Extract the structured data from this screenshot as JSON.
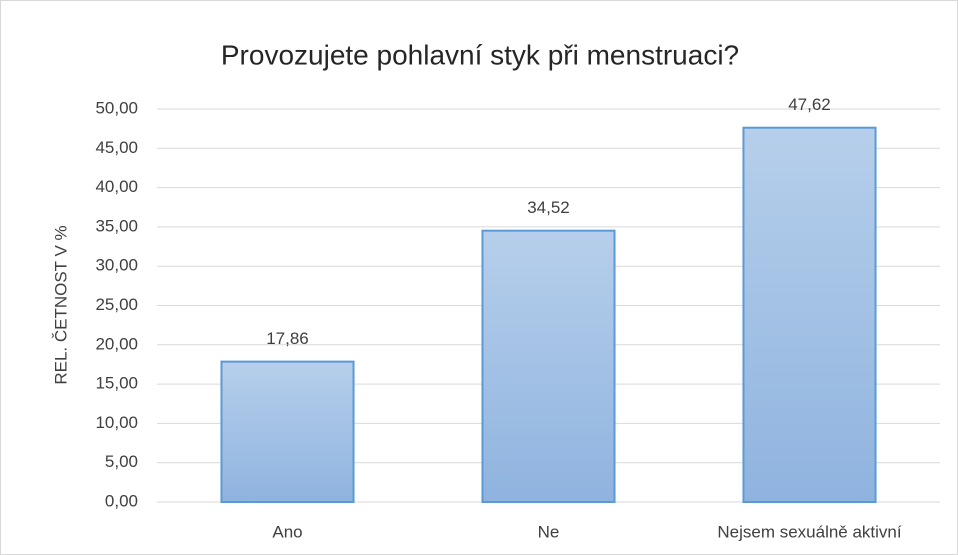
{
  "chart_data": {
    "type": "bar",
    "title": "Provozujete pohlavní styk při menstruaci?",
    "ylabel": "REL. ČETNOST V %",
    "categories": [
      "Ano",
      "Ne",
      "Nejsem sexuálně aktivní"
    ],
    "values": [
      17.86,
      34.52,
      47.62
    ],
    "value_labels": [
      "17,86",
      "34,52",
      "47,62"
    ],
    "color": "#5b9bd5",
    "ylim": [
      0,
      50
    ],
    "yticks": [
      {
        "value": 0,
        "label": "0,00"
      },
      {
        "value": 5,
        "label": "5,00"
      },
      {
        "value": 10,
        "label": "10,00"
      },
      {
        "value": 15,
        "label": "15,00"
      },
      {
        "value": 20,
        "label": "20,00"
      },
      {
        "value": 25,
        "label": "25,00"
      },
      {
        "value": 30,
        "label": "30,00"
      },
      {
        "value": 35,
        "label": "35,00"
      },
      {
        "value": 40,
        "label": "40,00"
      },
      {
        "value": 45,
        "label": "45,00"
      },
      {
        "value": 50,
        "label": "50,00"
      }
    ],
    "grid": true
  }
}
